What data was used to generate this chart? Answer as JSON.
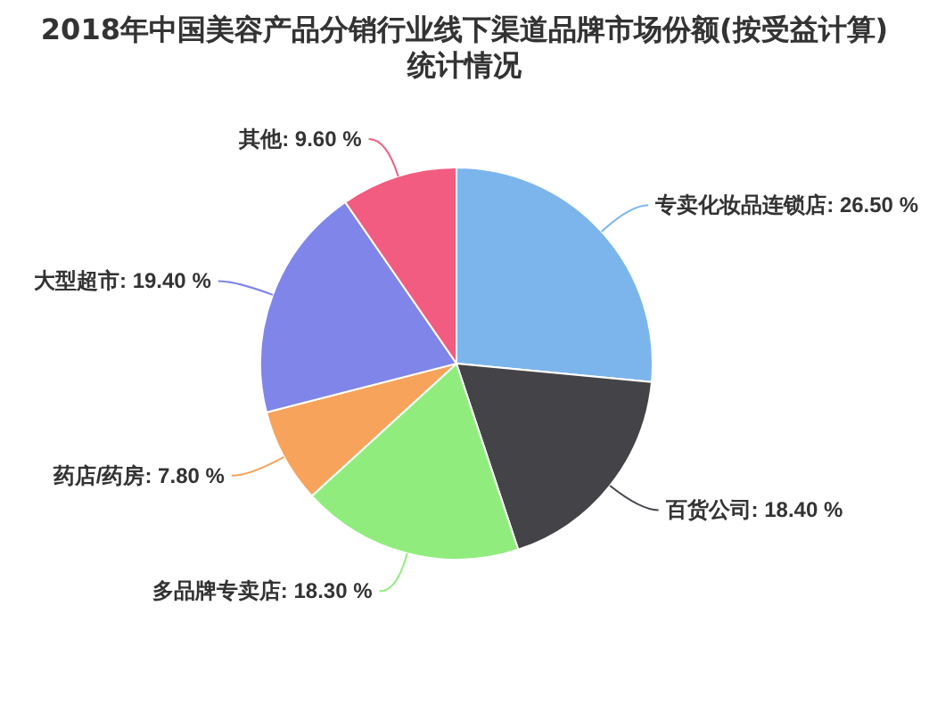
{
  "chart_data": {
    "type": "pie",
    "title": "2018年中国美容产品分销行业线下渠道品牌市场份额(按受益计算)统计情况",
    "categories": [
      "专卖化妆品连锁店",
      "百货公司",
      "多品牌专卖店",
      "药店/药房",
      "大型超市",
      "其他"
    ],
    "values": [
      26.5,
      18.4,
      18.3,
      7.8,
      19.4,
      9.6
    ],
    "colors": [
      "#7cb5ec",
      "#434348",
      "#90ed7d",
      "#f7a35c",
      "#8085e9",
      "#f15c80"
    ],
    "value_labels": [
      "26.50 %",
      "18.40 %",
      "18.30 %",
      "7.80 %",
      "19.40 %",
      "9.60 %"
    ]
  }
}
